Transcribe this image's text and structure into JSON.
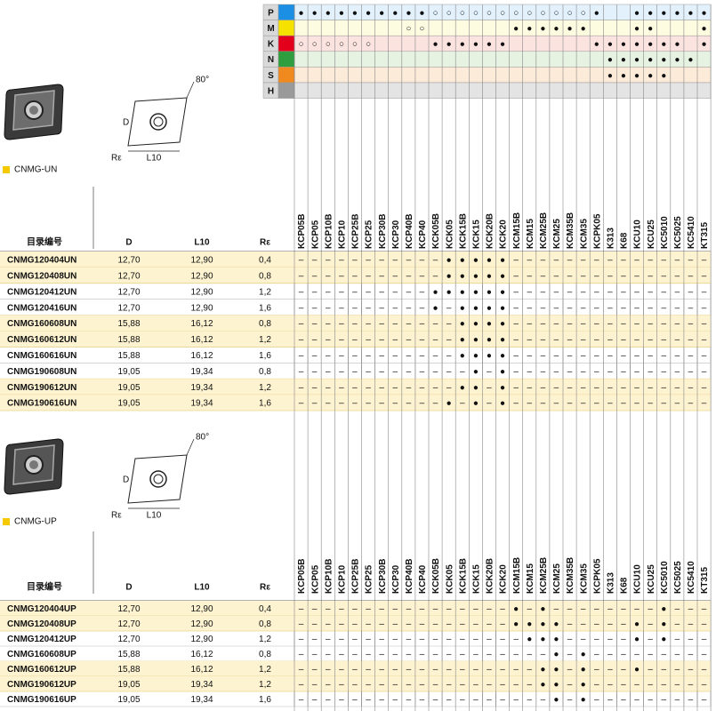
{
  "grades": [
    "KCP05B",
    "KCP05",
    "KCP10B",
    "KCP10",
    "KCP25B",
    "KCP25",
    "KCP30B",
    "KCP30",
    "KCP40B",
    "KCP40",
    "KCK05B",
    "KCK05",
    "KCK15B",
    "KCK15",
    "KCK20B",
    "KCK20",
    "KCM15B",
    "KCM15",
    "KCM25B",
    "KCM25",
    "KCM35B",
    "KCM35",
    "KCPK05",
    "K313",
    "K68",
    "KCU10",
    "KCU25",
    "KC5010",
    "KC5025",
    "KC5410",
    "KT315"
  ],
  "materials": [
    {
      "letter": "P",
      "color": "#1a8fe3",
      "bg": "#e3f1fc",
      "cells": [
        "●",
        "●",
        "●",
        "●",
        "●",
        "●",
        "●",
        "●",
        "●",
        "●",
        "○",
        "○",
        "○",
        "○",
        "○",
        "○",
        "○",
        "○",
        "○",
        "○",
        "○",
        "○",
        "●",
        null,
        null,
        "●",
        "●",
        "●",
        "●",
        "●",
        "●"
      ]
    },
    {
      "letter": "M",
      "color": "#f5e200",
      "bg": "#fdfbe0",
      "cells": [
        null,
        null,
        null,
        null,
        null,
        null,
        null,
        null,
        "○",
        "○",
        null,
        null,
        null,
        null,
        null,
        null,
        "●",
        "●",
        "●",
        "●",
        "●",
        "●",
        null,
        null,
        null,
        "●",
        "●",
        null,
        null,
        null,
        "●"
      ]
    },
    {
      "letter": "K",
      "color": "#e2001a",
      "bg": "#fbe3e0",
      "cells": [
        "○",
        "○",
        "○",
        "○",
        "○",
        "○",
        null,
        null,
        null,
        null,
        "●",
        "●",
        "●",
        "●",
        "●",
        "●",
        null,
        null,
        null,
        null,
        null,
        null,
        "●",
        "●",
        "●",
        "●",
        "●",
        "●",
        "●",
        null,
        "●"
      ]
    },
    {
      "letter": "N",
      "color": "#2e9e3e",
      "bg": "#e6f3e2",
      "cells": [
        null,
        null,
        null,
        null,
        null,
        null,
        null,
        null,
        null,
        null,
        null,
        null,
        null,
        null,
        null,
        null,
        null,
        null,
        null,
        null,
        null,
        null,
        null,
        "●",
        "●",
        "●",
        "●",
        "●",
        "●",
        "●",
        null
      ]
    },
    {
      "letter": "S",
      "color": "#f08a1e",
      "bg": "#fdebd9",
      "cells": [
        null,
        null,
        null,
        null,
        null,
        null,
        null,
        null,
        null,
        null,
        null,
        null,
        null,
        null,
        null,
        null,
        null,
        null,
        null,
        null,
        null,
        null,
        null,
        "●",
        "●",
        "●",
        "●",
        "●",
        null,
        null,
        null
      ]
    },
    {
      "letter": "H",
      "color": "#9a9a9a",
      "bg": "#e4e4e4",
      "cells": [
        null,
        null,
        null,
        null,
        null,
        null,
        null,
        null,
        null,
        null,
        null,
        null,
        null,
        null,
        null,
        null,
        null,
        null,
        null,
        null,
        null,
        null,
        null,
        null,
        null,
        null,
        null,
        null,
        null,
        null,
        null
      ]
    }
  ],
  "diagram": {
    "angle": "80°",
    "d": "D",
    "l10": "L10",
    "re": "Rε"
  },
  "headers": [
    "目录编号",
    "D",
    "L10",
    "Rε"
  ],
  "sections": [
    {
      "title": "CNMG-UN",
      "rows": [
        {
          "id": "CNMG120404UN",
          "d": "12,70",
          "l10": "12,90",
          "re": "0,4",
          "highlight": true,
          "cells": [
            "–",
            "–",
            "–",
            "–",
            "–",
            "–",
            "–",
            "–",
            "–",
            "–",
            "–",
            "●",
            "●",
            "●",
            "●",
            "●",
            "–",
            "–",
            "–",
            "–",
            "–",
            "–",
            "–",
            "–",
            "–",
            "–",
            "–",
            "–",
            "–",
            "–",
            "–"
          ]
        },
        {
          "id": "CNMG120408UN",
          "d": "12,70",
          "l10": "12,90",
          "re": "0,8",
          "highlight": true,
          "cells": [
            "–",
            "–",
            "–",
            "–",
            "–",
            "–",
            "–",
            "–",
            "–",
            "–",
            "–",
            "●",
            "●",
            "●",
            "●",
            "●",
            "–",
            "–",
            "–",
            "–",
            "–",
            "–",
            "–",
            "–",
            "–",
            "–",
            "–",
            "–",
            "–",
            "–",
            "–"
          ]
        },
        {
          "id": "CNMG120412UN",
          "d": "12,70",
          "l10": "12,90",
          "re": "1,2",
          "highlight": false,
          "cells": [
            "–",
            "–",
            "–",
            "–",
            "–",
            "–",
            "–",
            "–",
            "–",
            "–",
            "●",
            "●",
            "●",
            "●",
            "●",
            "●",
            "–",
            "–",
            "–",
            "–",
            "–",
            "–",
            "–",
            "–",
            "–",
            "–",
            "–",
            "–",
            "–",
            "–",
            "–"
          ]
        },
        {
          "id": "CNMG120416UN",
          "d": "12,70",
          "l10": "12,90",
          "re": "1,6",
          "highlight": false,
          "cells": [
            "–",
            "–",
            "–",
            "–",
            "–",
            "–",
            "–",
            "–",
            "–",
            "–",
            "●",
            "–",
            "●",
            "●",
            "●",
            "●",
            "–",
            "–",
            "–",
            "–",
            "–",
            "–",
            "–",
            "–",
            "–",
            "–",
            "–",
            "–",
            "–",
            "–",
            "–"
          ]
        },
        {
          "id": "CNMG160608UN",
          "d": "15,88",
          "l10": "16,12",
          "re": "0,8",
          "highlight": true,
          "cells": [
            "–",
            "–",
            "–",
            "–",
            "–",
            "–",
            "–",
            "–",
            "–",
            "–",
            "–",
            "–",
            "●",
            "●",
            "●",
            "●",
            "–",
            "–",
            "–",
            "–",
            "–",
            "–",
            "–",
            "–",
            "–",
            "–",
            "–",
            "–",
            "–",
            "–",
            "–"
          ]
        },
        {
          "id": "CNMG160612UN",
          "d": "15,88",
          "l10": "16,12",
          "re": "1,2",
          "highlight": true,
          "cells": [
            "–",
            "–",
            "–",
            "–",
            "–",
            "–",
            "–",
            "–",
            "–",
            "–",
            "–",
            "–",
            "●",
            "●",
            "●",
            "●",
            "–",
            "–",
            "–",
            "–",
            "–",
            "–",
            "–",
            "–",
            "–",
            "–",
            "–",
            "–",
            "–",
            "–",
            "–"
          ]
        },
        {
          "id": "CNMG160616UN",
          "d": "15,88",
          "l10": "16,12",
          "re": "1,6",
          "highlight": false,
          "cells": [
            "–",
            "–",
            "–",
            "–",
            "–",
            "–",
            "–",
            "–",
            "–",
            "–",
            "–",
            "–",
            "●",
            "●",
            "●",
            "●",
            "–",
            "–",
            "–",
            "–",
            "–",
            "–",
            "–",
            "–",
            "–",
            "–",
            "–",
            "–",
            "–",
            "–",
            "–"
          ]
        },
        {
          "id": "CNMG190608UN",
          "d": "19,05",
          "l10": "19,34",
          "re": "0,8",
          "highlight": false,
          "cells": [
            "–",
            "–",
            "–",
            "–",
            "–",
            "–",
            "–",
            "–",
            "–",
            "–",
            "–",
            "–",
            "–",
            "●",
            "–",
            "●",
            "–",
            "–",
            "–",
            "–",
            "–",
            "–",
            "–",
            "–",
            "–",
            "–",
            "–",
            "–",
            "–",
            "–",
            "–"
          ]
        },
        {
          "id": "CNMG190612UN",
          "d": "19,05",
          "l10": "19,34",
          "re": "1,2",
          "highlight": true,
          "cells": [
            "–",
            "–",
            "–",
            "–",
            "–",
            "–",
            "–",
            "–",
            "–",
            "–",
            "–",
            "–",
            "●",
            "●",
            "–",
            "●",
            "–",
            "–",
            "–",
            "–",
            "–",
            "–",
            "–",
            "–",
            "–",
            "–",
            "–",
            "–",
            "–",
            "–",
            "–"
          ]
        },
        {
          "id": "CNMG190616UN",
          "d": "19,05",
          "l10": "19,34",
          "re": "1,6",
          "highlight": true,
          "cells": [
            "–",
            "–",
            "–",
            "–",
            "–",
            "–",
            "–",
            "–",
            "–",
            "–",
            "–",
            "●",
            "–",
            "●",
            "–",
            "●",
            "–",
            "–",
            "–",
            "–",
            "–",
            "–",
            "–",
            "–",
            "–",
            "–",
            "–",
            "–",
            "–",
            "–",
            "–"
          ]
        }
      ]
    },
    {
      "title": "CNMG-UP",
      "rows": [
        {
          "id": "CNMG120404UP",
          "d": "12,70",
          "l10": "12,90",
          "re": "0,4",
          "highlight": true,
          "cells": [
            "–",
            "–",
            "–",
            "–",
            "–",
            "–",
            "–",
            "–",
            "–",
            "–",
            "–",
            "–",
            "–",
            "–",
            "–",
            "–",
            "●",
            "–",
            "●",
            "–",
            "–",
            "–",
            "–",
            "–",
            "–",
            "–",
            "–",
            "●",
            "–",
            "–",
            "–"
          ]
        },
        {
          "id": "CNMG120408UP",
          "d": "12,70",
          "l10": "12,90",
          "re": "0,8",
          "highlight": true,
          "cells": [
            "–",
            "–",
            "–",
            "–",
            "–",
            "–",
            "–",
            "–",
            "–",
            "–",
            "–",
            "–",
            "–",
            "–",
            "–",
            "–",
            "●",
            "●",
            "●",
            "●",
            "–",
            "–",
            "–",
            "–",
            "–",
            "●",
            "–",
            "●",
            "–",
            "–",
            "–"
          ]
        },
        {
          "id": "CNMG120412UP",
          "d": "12,70",
          "l10": "12,90",
          "re": "1,2",
          "highlight": false,
          "cells": [
            "–",
            "–",
            "–",
            "–",
            "–",
            "–",
            "–",
            "–",
            "–",
            "–",
            "–",
            "–",
            "–",
            "–",
            "–",
            "–",
            "–",
            "●",
            "●",
            "●",
            "–",
            "–",
            "–",
            "–",
            "–",
            "●",
            "–",
            "●",
            "–",
            "–",
            "–"
          ]
        },
        {
          "id": "CNMG160608UP",
          "d": "15,88",
          "l10": "16,12",
          "re": "0,8",
          "highlight": false,
          "cells": [
            "–",
            "–",
            "–",
            "–",
            "–",
            "–",
            "–",
            "–",
            "–",
            "–",
            "–",
            "–",
            "–",
            "–",
            "–",
            "–",
            "–",
            "–",
            "–",
            "●",
            "–",
            "●",
            "–",
            "–",
            "–",
            "–",
            "–",
            "–",
            "–",
            "–",
            "–"
          ]
        },
        {
          "id": "CNMG160612UP",
          "d": "15,88",
          "l10": "16,12",
          "re": "1,2",
          "highlight": true,
          "cells": [
            "–",
            "–",
            "–",
            "–",
            "–",
            "–",
            "–",
            "–",
            "–",
            "–",
            "–",
            "–",
            "–",
            "–",
            "–",
            "–",
            "–",
            "–",
            "●",
            "●",
            "–",
            "●",
            "–",
            "–",
            "–",
            "●",
            "–",
            "–",
            "–",
            "–",
            "–"
          ]
        },
        {
          "id": "CNMG190612UP",
          "d": "19,05",
          "l10": "19,34",
          "re": "1,2",
          "highlight": true,
          "cells": [
            "–",
            "–",
            "–",
            "–",
            "–",
            "–",
            "–",
            "–",
            "–",
            "–",
            "–",
            "–",
            "–",
            "–",
            "–",
            "–",
            "–",
            "–",
            "●",
            "●",
            "–",
            "●",
            "–",
            "–",
            "–",
            "–",
            "–",
            "–",
            "–",
            "–",
            "–"
          ]
        },
        {
          "id": "CNMG190616UP",
          "d": "19,05",
          "l10": "19,34",
          "re": "1,6",
          "highlight": false,
          "cells": [
            "–",
            "–",
            "–",
            "–",
            "–",
            "–",
            "–",
            "–",
            "–",
            "–",
            "–",
            "–",
            "–",
            "–",
            "–",
            "–",
            "–",
            "–",
            "–",
            "●",
            "–",
            "●",
            "–",
            "–",
            "–",
            "–",
            "–",
            "–",
            "–",
            "–",
            "–"
          ]
        }
      ]
    }
  ]
}
